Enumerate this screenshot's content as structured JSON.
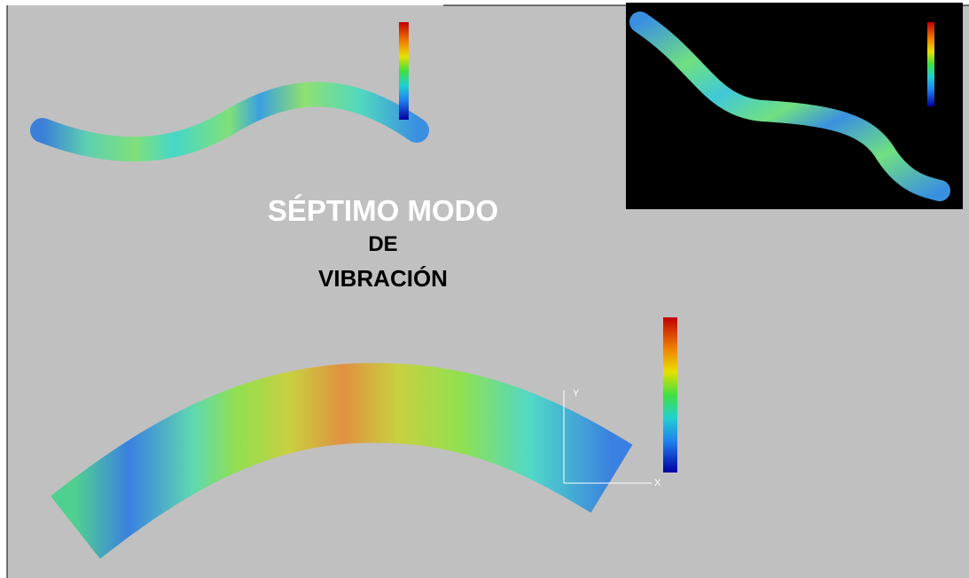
{
  "title": {
    "line1": "SÉPTIMO MODO",
    "line2": "DE",
    "line3": "VIBRACIÓN"
  },
  "axes": {
    "y": "Y",
    "x": "X"
  }
}
